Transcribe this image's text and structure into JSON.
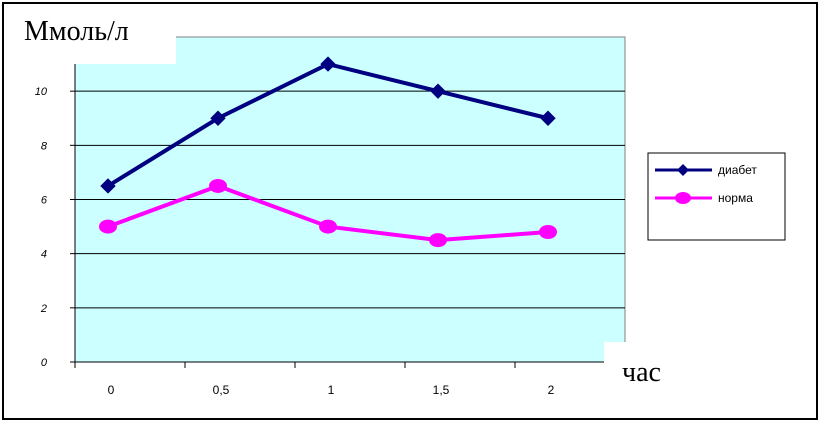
{
  "chart_data": {
    "type": "line",
    "title": "",
    "ylabel": "Ммоль/л",
    "xlabel": "час",
    "categories": [
      "0",
      "0,5",
      "1",
      "1,5",
      "2"
    ],
    "ylim": [
      0,
      12
    ],
    "yticks": [
      "0",
      "2",
      "4",
      "6",
      "8",
      "10"
    ],
    "grid": true,
    "legend_position": "right",
    "series": [
      {
        "name": "диабет",
        "values": [
          6.5,
          9,
          11,
          10,
          9
        ],
        "color": "#000080",
        "marker": "diamond"
      },
      {
        "name": "норма",
        "values": [
          5,
          6.5,
          5,
          4.5,
          4.8
        ],
        "color": "#FF00FF",
        "marker": "circle"
      }
    ],
    "plot_background": "#CCFFFF"
  }
}
